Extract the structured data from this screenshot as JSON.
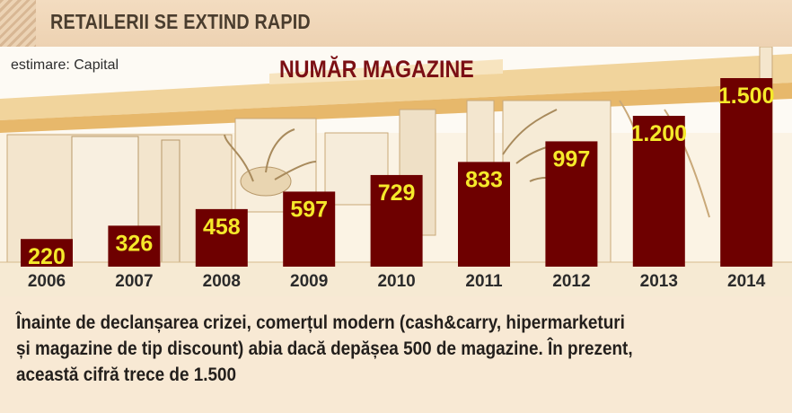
{
  "header": {
    "title": "RETAILERII SE EXTIND RAPID"
  },
  "source": "estimare: Capital",
  "colors": {
    "bar": "#6e0000",
    "value_label": "#f5e92a",
    "title": "#7b0f14",
    "tick": "#2b2b2b"
  },
  "chart_data": {
    "type": "bar",
    "title": "NUMĂR MAGAZINE",
    "categories": [
      "2006",
      "2007",
      "2008",
      "2009",
      "2010",
      "2011",
      "2012",
      "2013",
      "2014"
    ],
    "values": [
      220,
      326,
      458,
      597,
      729,
      833,
      997,
      1200,
      1500
    ],
    "value_labels": [
      "220",
      "326",
      "458",
      "597",
      "729",
      "833",
      "997",
      "1.200",
      "1.500"
    ],
    "xlabel": "",
    "ylabel": "",
    "grid": false,
    "legend": "none"
  },
  "footer": {
    "line1": "Înainte de declanșarea crizei, comerțul modern (cash&carry, hipermarketuri",
    "line2": "și magazine de tip discount) abia dacă depășea 500 de magazine. În prezent,",
    "line3": "această cifră trece de 1.500"
  }
}
